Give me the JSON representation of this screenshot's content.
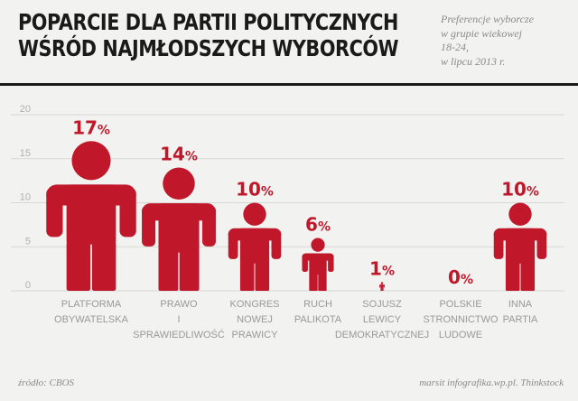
{
  "title_lines": [
    "Poparcie dla partii politycznych",
    "wśród najmłodszych wyborców"
  ],
  "subtitle_lines": [
    "Preferencje wyborcze",
    "w grupie wiekowej",
    "18-24,",
    "w lipcu 2013 r."
  ],
  "footer": {
    "source": "źródło: CBOS",
    "credit": "marsit infografika.wp.pl. Thinkstock"
  },
  "colors": {
    "accent": "#c0182a",
    "axis_text": "#b0b0b0",
    "grid": "#d7d7d7",
    "label": "#999999",
    "title": "#1a1a1a"
  },
  "chart_data": {
    "type": "bar",
    "style": "pictograph-person",
    "yticks": [
      0,
      5,
      10,
      15,
      20
    ],
    "ylim": [
      0,
      20
    ],
    "value_suffix": "%",
    "categories": [
      {
        "label_lines": [
          "PLATFORMA",
          "OBYWATELSKA"
        ],
        "value": 17
      },
      {
        "label_lines": [
          "PRAWO",
          "I",
          "SPRAWIEDLIWOŚĆ"
        ],
        "value": 14
      },
      {
        "label_lines": [
          "KONGRES",
          "NOWEJ",
          "PRAWICY"
        ],
        "value": 10
      },
      {
        "label_lines": [
          "RUCH",
          "PALIKOTA"
        ],
        "value": 6
      },
      {
        "label_lines": [
          "SOJUSZ",
          "LEWICY",
          "DEMOKRATYCZNEJ"
        ],
        "value": 1
      },
      {
        "label_lines": [
          "POLSKIE",
          "STRONNICTWO",
          "LUDOWE"
        ],
        "value": 0
      },
      {
        "label_lines": [
          "INNA",
          "PARTIA"
        ],
        "value": 10
      }
    ]
  }
}
